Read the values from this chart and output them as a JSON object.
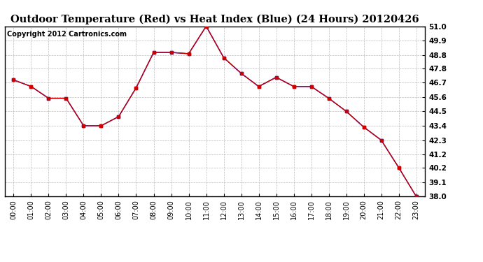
{
  "title": "Outdoor Temperature (Red) vs Heat Index (Blue) (24 Hours) 20120426",
  "copyright": "Copyright 2012 Cartronics.com",
  "x_labels": [
    "00:00",
    "01:00",
    "02:00",
    "03:00",
    "04:00",
    "05:00",
    "06:00",
    "07:00",
    "08:00",
    "09:00",
    "10:00",
    "11:00",
    "12:00",
    "13:00",
    "14:00",
    "15:00",
    "16:00",
    "17:00",
    "18:00",
    "19:00",
    "20:00",
    "21:00",
    "22:00",
    "23:00"
  ],
  "temp_values": [
    46.9,
    46.4,
    45.5,
    45.5,
    43.4,
    43.4,
    44.1,
    46.3,
    49.0,
    49.0,
    48.9,
    51.0,
    48.6,
    47.4,
    46.4,
    47.1,
    46.4,
    46.4,
    45.5,
    44.5,
    43.3,
    42.3,
    40.2,
    38.0
  ],
  "heat_values": [
    46.9,
    46.4,
    45.5,
    45.5,
    43.4,
    43.4,
    44.1,
    46.3,
    49.0,
    49.0,
    48.9,
    51.0,
    48.6,
    47.4,
    46.4,
    47.1,
    46.4,
    46.4,
    45.5,
    44.5,
    43.3,
    42.3,
    40.2,
    38.0
  ],
  "temp_color": "#cc0000",
  "heat_color": "#0000cc",
  "y_min": 38.0,
  "y_max": 51.0,
  "y_ticks": [
    38.0,
    39.1,
    40.2,
    41.2,
    42.3,
    43.4,
    44.5,
    45.6,
    46.7,
    47.8,
    48.8,
    49.9,
    51.0
  ],
  "bg_color": "#ffffff",
  "grid_color": "#aaaaaa",
  "title_fontsize": 10.5,
  "copyright_fontsize": 7,
  "tick_fontsize": 7.5,
  "x_tick_fontsize": 7
}
